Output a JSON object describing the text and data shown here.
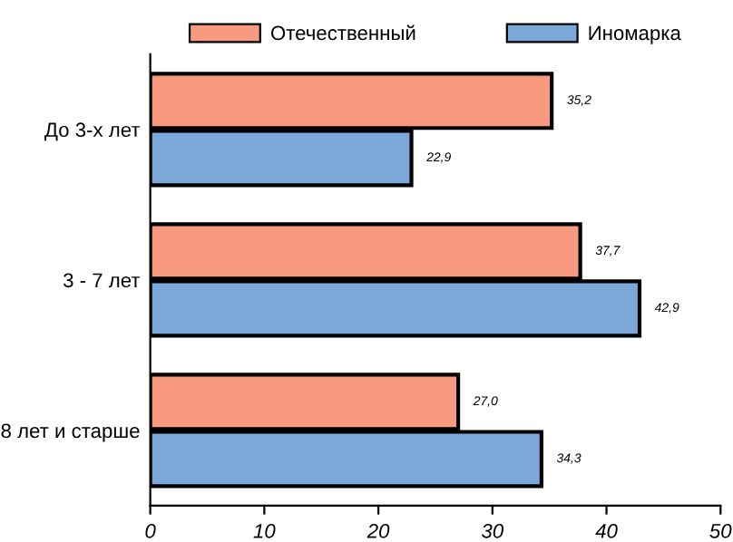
{
  "chart_data": {
    "type": "bar",
    "orientation": "horizontal",
    "categories": [
      "До 3-х лет",
      "3 - 7 лет",
      "8 лет и старше"
    ],
    "series": [
      {
        "name": "Отечественный",
        "color": "#f79a80",
        "values": [
          35.2,
          37.7,
          27.0
        ],
        "value_labels": [
          "35,2",
          "37,7",
          "27,0"
        ]
      },
      {
        "name": "Иномарка",
        "color": "#7ba7d9",
        "values": [
          22.9,
          42.9,
          34.3
        ],
        "value_labels": [
          "22,9",
          "42,9",
          "34,3"
        ]
      }
    ],
    "xlim": [
      0,
      50
    ],
    "xticks": [
      0,
      10,
      20,
      30,
      40,
      50
    ],
    "grid": false,
    "legend": "top"
  }
}
